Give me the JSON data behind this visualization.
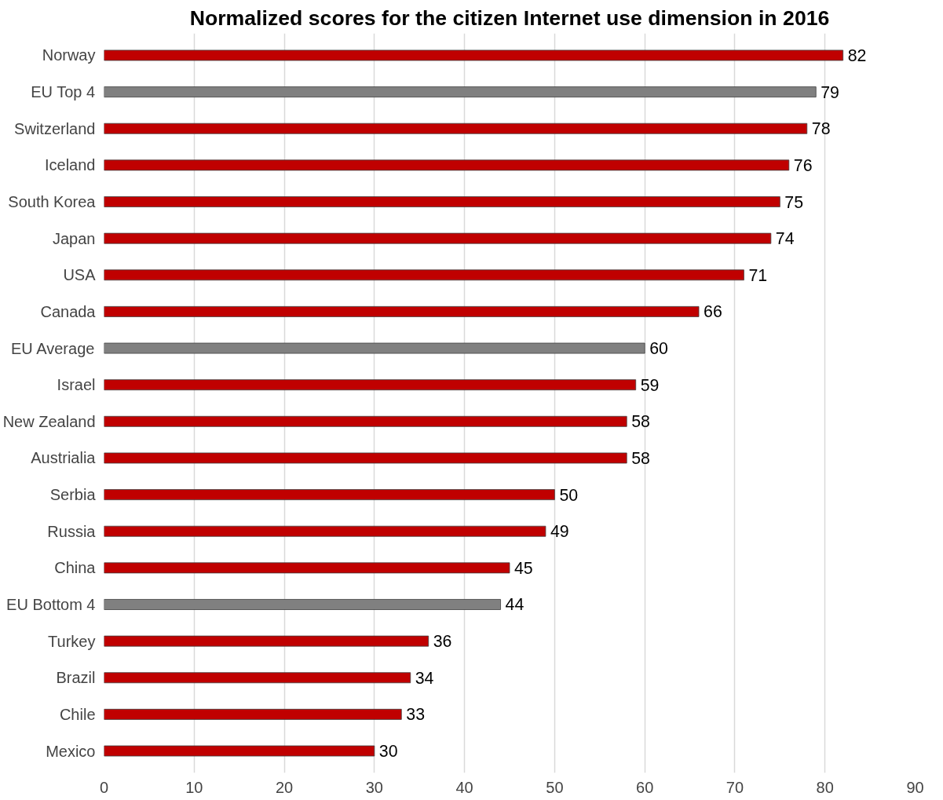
{
  "chart_data": {
    "type": "bar",
    "orientation": "horizontal",
    "title": "Normalized scores for the citizen Internet use dimension in 2016",
    "categories": [
      "Norway",
      "EU Top 4",
      "Switzerland",
      "Iceland",
      "South Korea",
      "Japan",
      "USA",
      "Canada",
      "EU Average",
      "Israel",
      "New Zealand",
      "Austrialia",
      "Serbia",
      "Russia",
      "China",
      "EU Bottom 4",
      "Turkey",
      "Brazil",
      "Chile",
      "Mexico"
    ],
    "values": [
      82,
      79,
      78,
      76,
      75,
      74,
      71,
      66,
      60,
      59,
      58,
      58,
      50,
      49,
      45,
      44,
      36,
      34,
      33,
      30
    ],
    "colors": [
      "#c00000",
      "#808080",
      "#c00000",
      "#c00000",
      "#c00000",
      "#c00000",
      "#c00000",
      "#c00000",
      "#808080",
      "#c00000",
      "#c00000",
      "#c00000",
      "#c00000",
      "#c00000",
      "#c00000",
      "#808080",
      "#c00000",
      "#c00000",
      "#c00000",
      "#c00000"
    ],
    "xlim": [
      0,
      90
    ],
    "xticks": [
      0,
      10,
      20,
      30,
      40,
      50,
      60,
      70,
      80,
      90
    ],
    "grid": "x",
    "data_labels": true
  }
}
